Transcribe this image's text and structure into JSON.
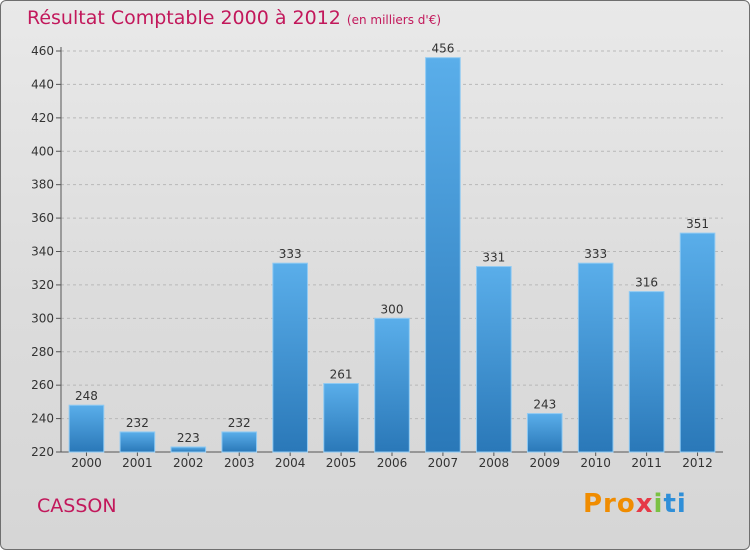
{
  "title": "Résultat Comptable 2000 à 2012",
  "subtitle": "(en milliers d'€)",
  "place": "CASSON",
  "logo": {
    "p1": "Pro",
    "p2": "x",
    "p3": "i",
    "p4": "ti"
  },
  "colors": {
    "title": "#c2185b",
    "bar_top": "#5aaeea",
    "bar_bottom": "#2a78b8",
    "grid": "#b8b8b8"
  },
  "chart_data": {
    "type": "bar",
    "title": "Résultat Comptable 2000 à 2012",
    "xlabel": "",
    "ylabel": "",
    "categories": [
      "2000",
      "2001",
      "2002",
      "2003",
      "2004",
      "2005",
      "2006",
      "2007",
      "2008",
      "2009",
      "2010",
      "2011",
      "2012"
    ],
    "values": [
      248,
      232,
      223,
      232,
      333,
      261,
      300,
      456,
      331,
      243,
      333,
      316,
      351
    ],
    "ylim": [
      220,
      460
    ],
    "yticks": [
      220,
      240,
      260,
      280,
      300,
      320,
      340,
      360,
      380,
      400,
      420,
      440,
      460
    ],
    "grid": true
  }
}
